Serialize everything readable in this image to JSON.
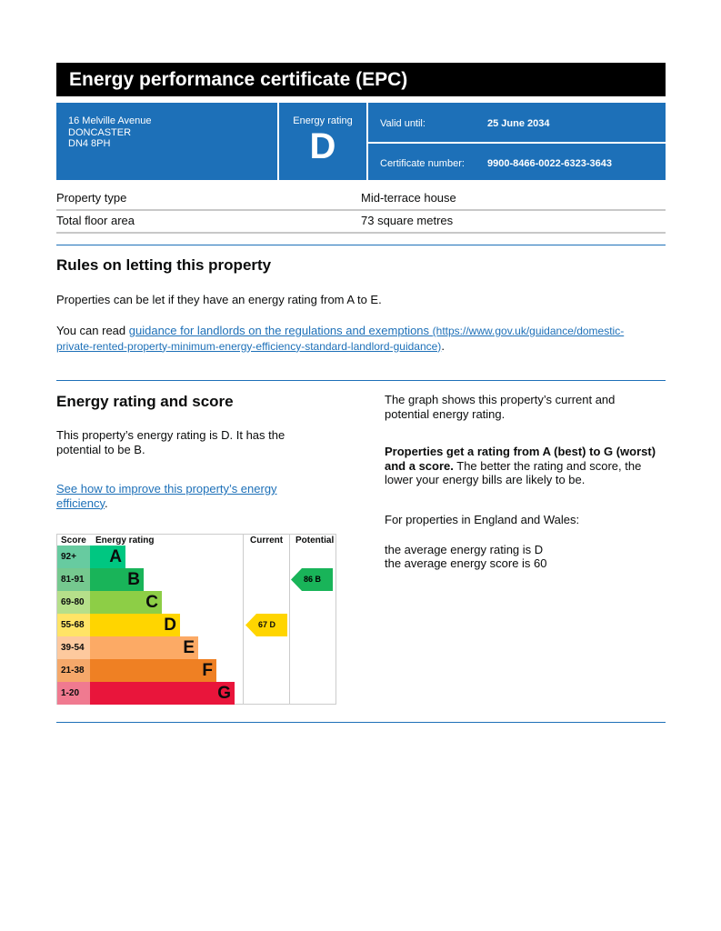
{
  "title": "Energy performance certificate (EPC)",
  "address": [
    "16 Melville Avenue",
    "DONCASTER",
    "DN4 8PH"
  ],
  "energy_rating_label": "Energy rating",
  "energy_rating": "D",
  "valid_until_label": "Valid until:",
  "valid_until": "25 June 2034",
  "certificate_label": "Certificate number:",
  "certificate_number": "9900-8466-0022-6323-3643",
  "property": [
    {
      "label": "Property type",
      "value": "Mid-terrace house"
    },
    {
      "label": "Total floor area",
      "value": "73 square metres"
    }
  ],
  "letting": {
    "heading": "Rules on letting this property",
    "para1": "Properties can be let if they have an energy rating from A to E.",
    "para2_prefix": "You can read ",
    "link": "guidance for landlords on the regulations and exemptions",
    "link_url": "(https://www.gov.uk/guidance/domestic-private-rented-property-minimum-energy-efficiency-standard-landlord-guidance)",
    "para2_suffix": "."
  },
  "score_section": {
    "heading": "Energy rating and score",
    "para1": "This property’s energy rating is D. It has the potential to be B.",
    "link": "See how to improve this property’s energy efficiency",
    "link_suffix": ".",
    "right_para1": "The graph shows this property’s current and potential energy rating.",
    "right_bold": "Properties get a rating from A (best) to G (worst) and a score.",
    "right_rest": " The better the rating and score, the lower your energy bills are likely to be.",
    "england": "For properties in England and Wales:",
    "avg_rating": "the average energy rating is D",
    "avg_score": "the average energy score is 60"
  },
  "chart_data": {
    "type": "table",
    "headers": [
      "Score",
      "Energy rating",
      "Current",
      "Potential"
    ],
    "bands": [
      {
        "score": "92+",
        "letter": "A",
        "color": "#00c781",
        "score_bg": "#67cba0"
      },
      {
        "score": "81-91",
        "letter": "B",
        "color": "#19b459",
        "score_bg": "#75c98f"
      },
      {
        "score": "69-80",
        "letter": "C",
        "color": "#8dce46",
        "score_bg": "#b6df8a"
      },
      {
        "score": "55-68",
        "letter": "D",
        "color": "#ffd500",
        "score_bg": "#ffe466"
      },
      {
        "score": "39-54",
        "letter": "E",
        "color": "#fcaa65",
        "score_bg": "#fdc99e"
      },
      {
        "score": "21-38",
        "letter": "F",
        "color": "#ef8023",
        "score_bg": "#f5a86a"
      },
      {
        "score": "1-20",
        "letter": "G",
        "color": "#e9153b",
        "score_bg": "#f07a90"
      }
    ],
    "current": {
      "score": 67,
      "letter": "D",
      "label": "67  D",
      "color": "#ffd500"
    },
    "potential": {
      "score": 86,
      "letter": "B",
      "label": "86  B",
      "color": "#19b459"
    }
  }
}
